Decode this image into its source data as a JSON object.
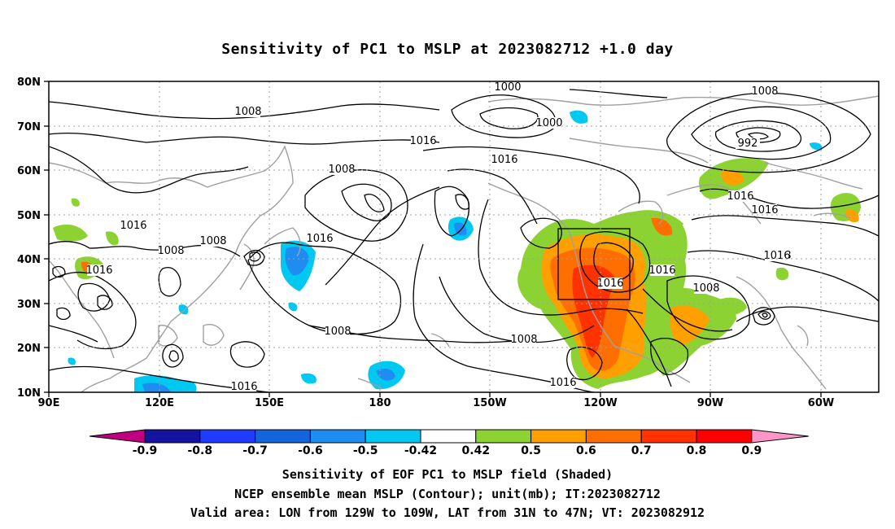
{
  "title": "Sensitivity of PC1 to MSLP at 2023082712 +1.0 day",
  "map": {
    "lon_ticks": [
      "90E",
      "120E",
      "150E",
      "180",
      "150W",
      "120W",
      "90W",
      "60W"
    ],
    "lat_ticks": [
      "10N",
      "20N",
      "30N",
      "40N",
      "50N",
      "60N",
      "70N",
      "80N"
    ],
    "isobar_labels": [
      "1008",
      "1000",
      "1000",
      "992",
      "1016",
      "1016",
      "1008",
      "1008",
      "1016",
      "1016",
      "1016",
      "1008",
      "1008",
      "1016",
      "1008",
      "1008",
      "1016",
      "1016",
      "1008",
      "1008",
      "1016",
      "1016",
      "1016",
      "1016",
      "1008"
    ]
  },
  "colorbar": {
    "labels": [
      "-0.9",
      "-0.8",
      "-0.7",
      "-0.6",
      "-0.5",
      "-0.42",
      "0.42",
      "0.5",
      "0.6",
      "0.7",
      "0.8",
      "0.9"
    ],
    "colors": [
      "#c0007f",
      "#1414a0",
      "#1e3cff",
      "#1464dc",
      "#1e8cf0",
      "#00c8f0",
      "#ffffff",
      "#8cd232",
      "#ffa000",
      "#ff6e00",
      "#ff3200",
      "#ff0000",
      "#ff96c8"
    ]
  },
  "caption": {
    "line1": "Sensitivity of EOF PC1 to MSLP field (Shaded)",
    "line2": "NCEP ensemble mean MSLP (Contour); unit(mb); IT:2023082712",
    "line3": "Valid area: LON from 129W to 109W, LAT from 31N to 47N; VT: 2023082912"
  }
}
